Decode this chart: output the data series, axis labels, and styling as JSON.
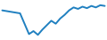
{
  "x": [
    0,
    1,
    2,
    3,
    4,
    5,
    6,
    7,
    8,
    9,
    10,
    11,
    12,
    13,
    14,
    15,
    16,
    17,
    18,
    19,
    20,
    21,
    22,
    23
  ],
  "y": [
    68,
    67,
    66,
    65,
    64,
    50,
    36,
    40,
    35,
    42,
    48,
    54,
    50,
    57,
    62,
    68,
    72,
    70,
    73,
    71,
    74,
    72,
    75,
    74
  ],
  "line_color": "#2080c0",
  "linewidth": 1.4,
  "background_color": "#ffffff",
  "ylim": [
    28,
    82
  ],
  "xlim": [
    -0.5,
    23.5
  ]
}
